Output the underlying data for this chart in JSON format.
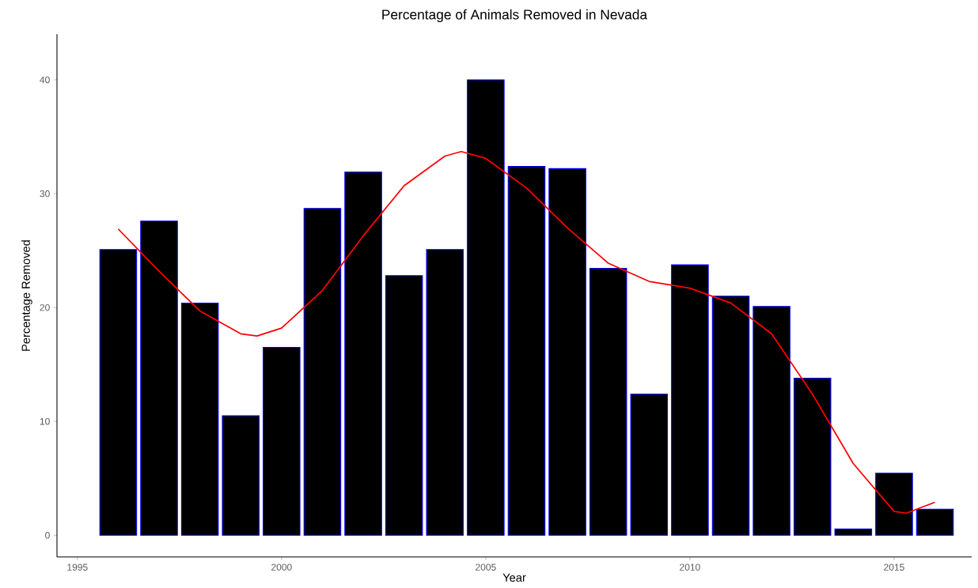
{
  "chart_data": {
    "type": "bar",
    "title": "Percentage of Animals Removed in Nevada",
    "xlabel": "Year",
    "ylabel": "Percentage Removed",
    "x": [
      1996,
      1997,
      1998,
      1999,
      2000,
      2001,
      2002,
      2003,
      2004,
      2005,
      2006,
      2007,
      2008,
      2009,
      2010,
      2011,
      2012,
      2013,
      2014,
      2015,
      2016
    ],
    "xlim": [
      1994.5,
      2016.9
    ],
    "xticks": [
      1995,
      2000,
      2005,
      2010,
      2015
    ],
    "ylim": [
      -1.9,
      44
    ],
    "yticks": [
      0,
      10,
      20,
      30,
      40
    ],
    "grid": false,
    "series": [
      {
        "color": "#000000",
        "values": [
          25.1,
          27.6,
          20.4,
          10.5,
          16.5,
          28.7,
          31.9,
          22.8,
          25.1,
          40.0,
          32.4,
          32.2,
          23.45,
          12.4,
          23.75,
          21.0,
          20.1,
          13.8,
          0.56,
          5.45,
          2.3
        ]
      },
      {
        "type": "line",
        "color": "#ff0000",
        "x": [
          1996,
          1997,
          1998,
          1999,
          1999.4,
          2000,
          2001,
          2002,
          2003,
          2004,
          2004.4,
          2005,
          2006,
          2007,
          2008,
          2009,
          2010,
          2011,
          2012,
          2013,
          2014,
          2015,
          2015.3,
          2016
        ],
        "values": [
          26.9,
          23.2,
          19.7,
          17.7,
          17.5,
          18.2,
          21.5,
          26.3,
          30.7,
          33.3,
          33.7,
          33.1,
          30.5,
          27.0,
          23.9,
          22.3,
          21.7,
          20.4,
          17.7,
          12.4,
          6.3,
          2.1,
          1.95,
          2.9
        ]
      }
    ]
  }
}
